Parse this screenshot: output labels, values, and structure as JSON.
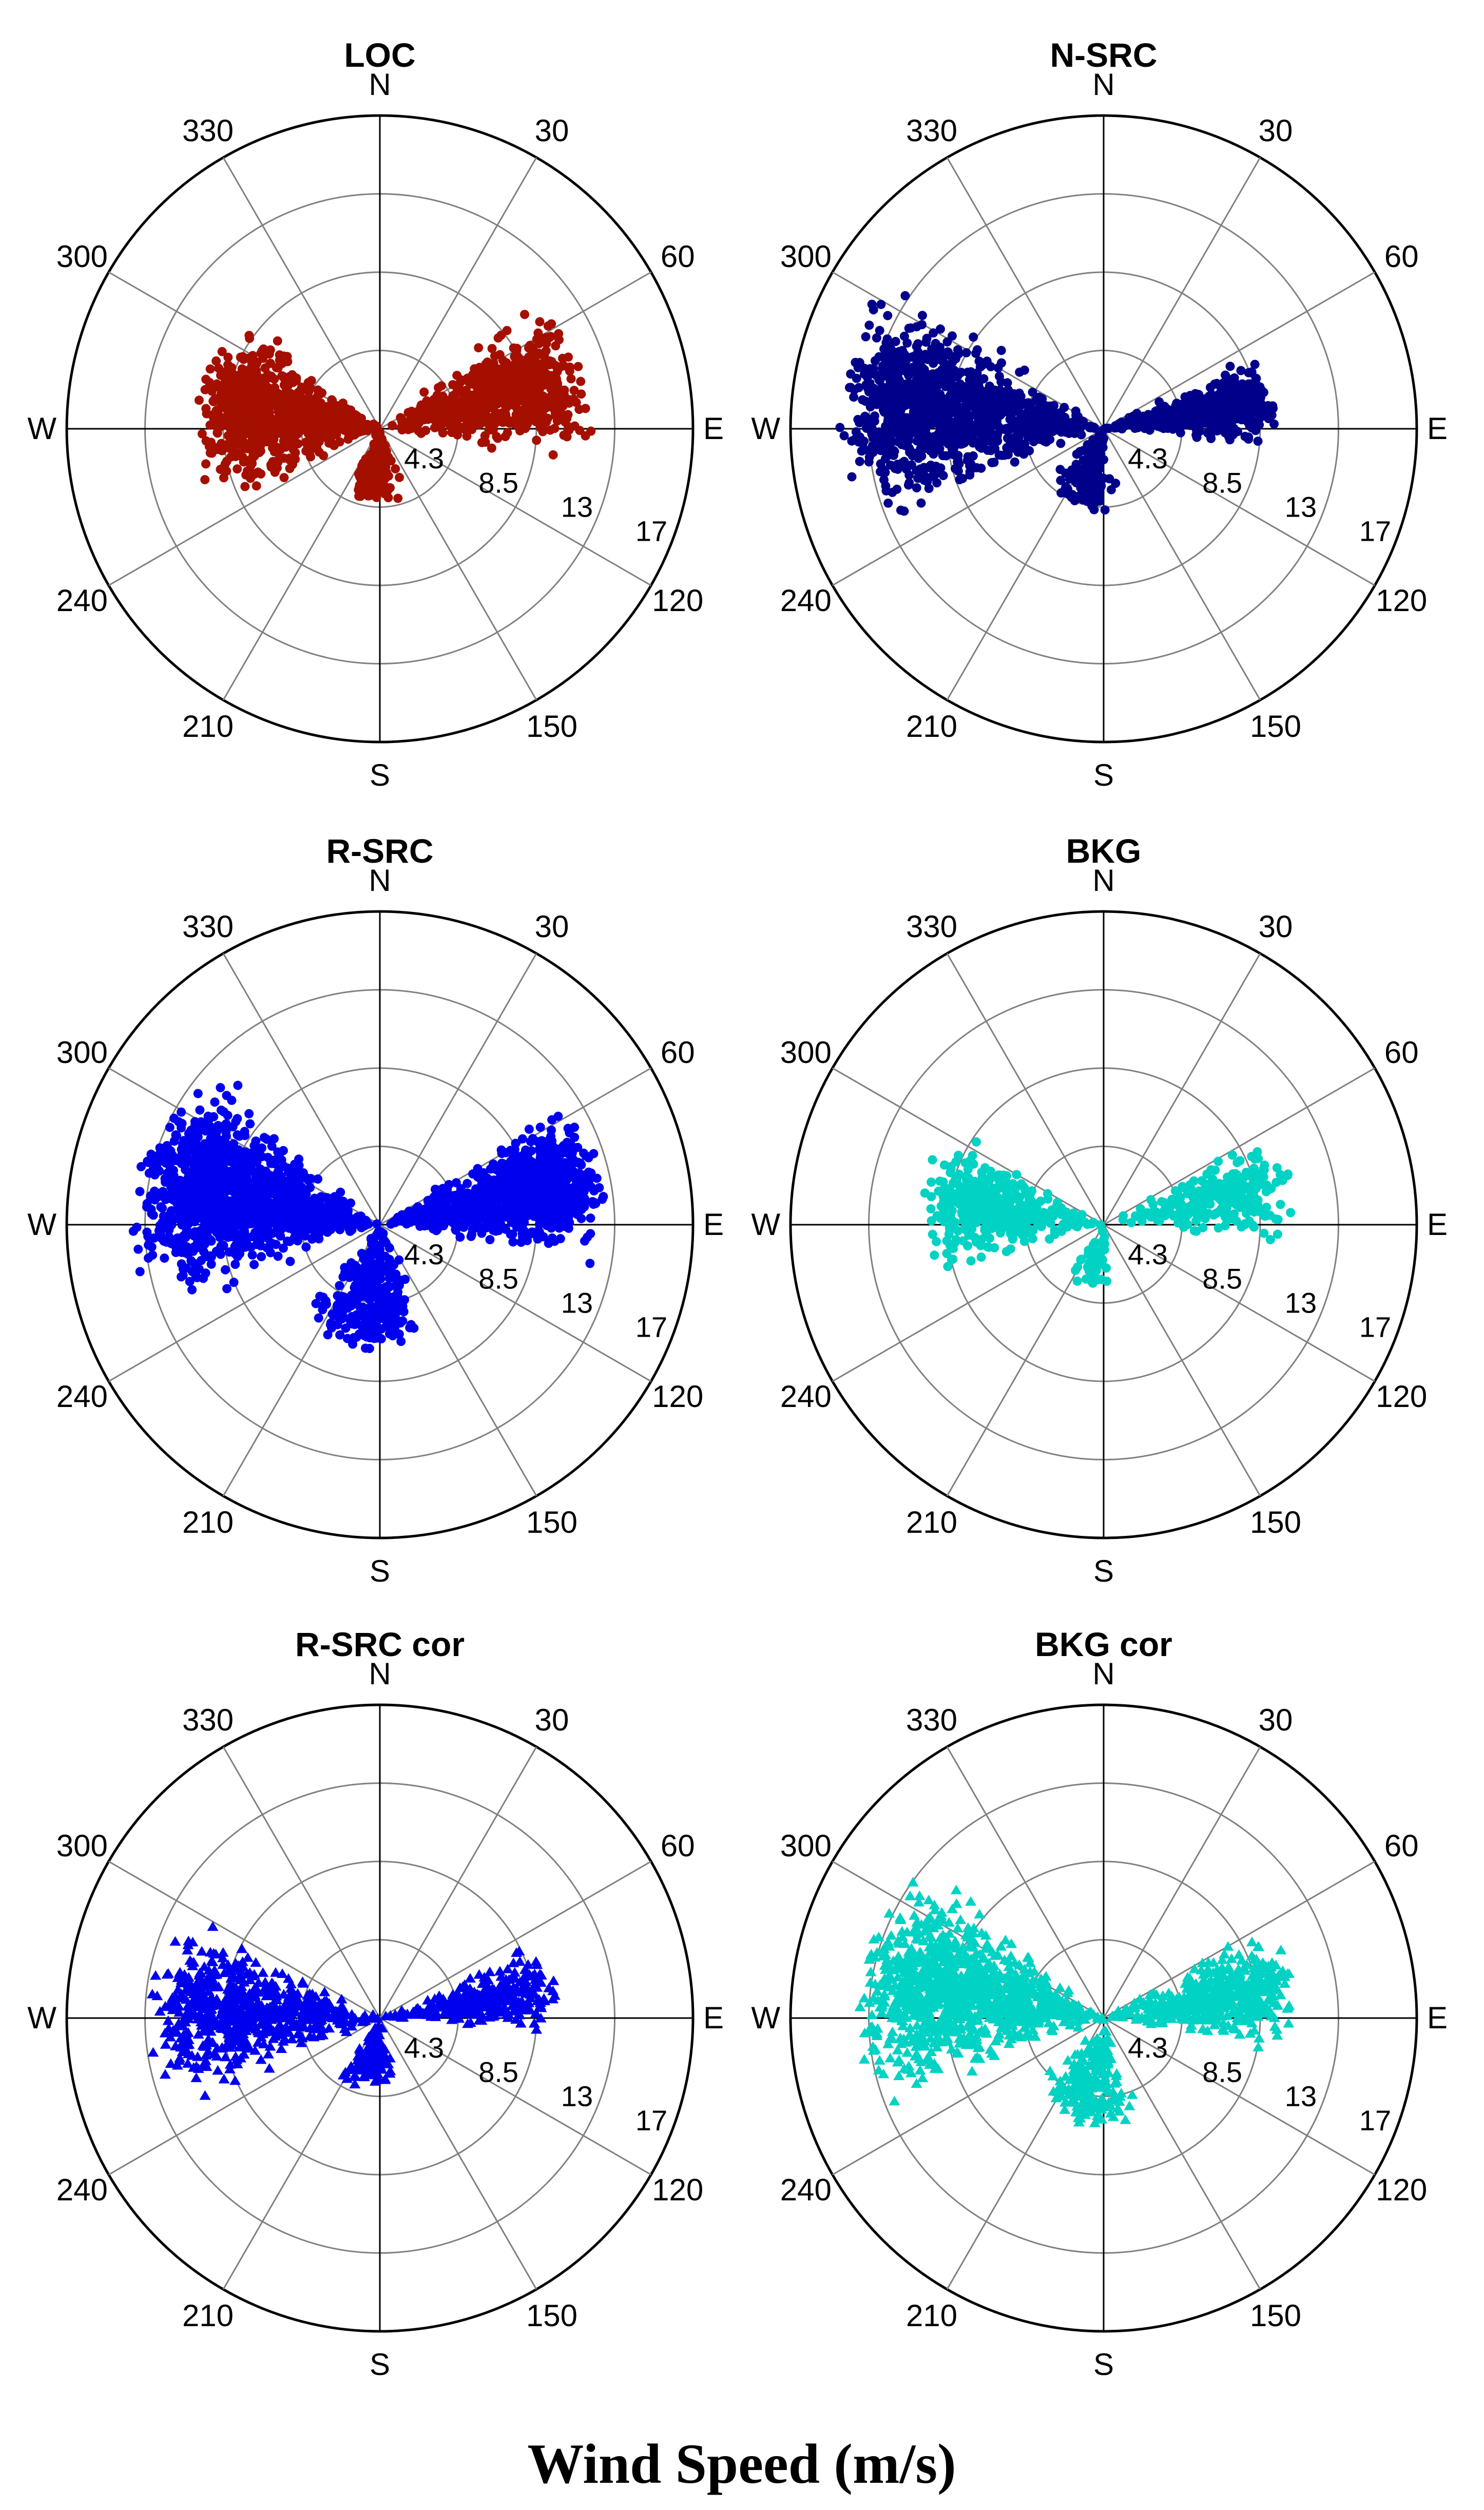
{
  "figure_title": "Wind Speed (m/s)",
  "chart_data": [
    {
      "type": "scatter",
      "coordinate_system": "polar",
      "title": "LOC",
      "marker": "circle",
      "color": "#a50f00",
      "r_ticks": [
        "4.3",
        "8.5",
        "13",
        "17"
      ],
      "r_max": 17,
      "angle_ticks": [
        "N",
        "30",
        "60",
        "E",
        "120",
        "150",
        "S",
        "210",
        "240",
        "W",
        "300",
        "330"
      ],
      "clusters": [
        {
          "direction_from_deg": [
            45,
            105
          ],
          "speed_range": [
            0,
            11.5
          ],
          "points": 700,
          "seed": 11
        },
        {
          "direction_from_deg": [
            235,
            320
          ],
          "speed_range": [
            0,
            10
          ],
          "points": 800,
          "seed": 12
        },
        {
          "direction_from_deg": [
            150,
            220
          ],
          "speed_range": [
            0,
            4
          ],
          "points": 160,
          "seed": 13
        }
      ]
    },
    {
      "type": "scatter",
      "coordinate_system": "polar",
      "title": "N-SRC",
      "marker": "circle",
      "color": "#00008b",
      "r_ticks": [
        "4.3",
        "8.5",
        "13",
        "17"
      ],
      "r_max": 17,
      "angle_ticks": [
        "N",
        "30",
        "60",
        "E",
        "120",
        "150",
        "S",
        "210",
        "240",
        "W",
        "300",
        "330"
      ],
      "clusters": [
        {
          "direction_from_deg": [
            60,
            100
          ],
          "speed_range": [
            0,
            9.5
          ],
          "points": 550,
          "seed": 21
        },
        {
          "direction_from_deg": [
            240,
            315
          ],
          "speed_range": [
            0,
            14.5
          ],
          "points": 1100,
          "seed": 22
        },
        {
          "direction_from_deg": [
            160,
            240
          ],
          "speed_range": [
            0,
            4.5
          ],
          "points": 160,
          "seed": 23
        }
      ]
    },
    {
      "type": "scatter",
      "coordinate_system": "polar",
      "title": "R-SRC",
      "marker": "circle",
      "color": "#0000ee",
      "r_ticks": [
        "4.3",
        "8.5",
        "13",
        "17"
      ],
      "r_max": 17,
      "angle_ticks": [
        "N",
        "30",
        "60",
        "E",
        "120",
        "150",
        "S",
        "210",
        "240",
        "W",
        "300",
        "330"
      ],
      "clusters": [
        {
          "direction_from_deg": [
            50,
            105
          ],
          "speed_range": [
            0,
            12.5
          ],
          "points": 900,
          "seed": 31
        },
        {
          "direction_from_deg": [
            240,
            320
          ],
          "speed_range": [
            0,
            13.5
          ],
          "points": 1300,
          "seed": 32
        },
        {
          "direction_from_deg": [
            140,
            235
          ],
          "speed_range": [
            0,
            7
          ],
          "points": 320,
          "seed": 33
        }
      ]
    },
    {
      "type": "scatter",
      "coordinate_system": "polar",
      "title": "BKG",
      "marker": "circle",
      "color": "#00d2c4",
      "r_ticks": [
        "4.3",
        "8.5",
        "13",
        "17"
      ],
      "r_max": 17,
      "angle_ticks": [
        "N",
        "30",
        "60",
        "E",
        "120",
        "150",
        "S",
        "210",
        "240",
        "W",
        "300",
        "330"
      ],
      "clusters": [
        {
          "direction_from_deg": [
            55,
            100
          ],
          "speed_range": [
            0,
            10.5
          ],
          "points": 260,
          "seed": 41
        },
        {
          "direction_from_deg": [
            245,
            310
          ],
          "speed_range": [
            0,
            10
          ],
          "points": 420,
          "seed": 42
        },
        {
          "direction_from_deg": [
            160,
            230
          ],
          "speed_range": [
            0,
            3.5
          ],
          "points": 60,
          "seed": 43
        }
      ]
    },
    {
      "type": "scatter",
      "coordinate_system": "polar",
      "title": "R-SRC cor",
      "marker": "triangle",
      "color": "#0000ee",
      "r_ticks": [
        "4.3",
        "8.5",
        "13",
        "17"
      ],
      "r_max": 17,
      "angle_ticks": [
        "N",
        "30",
        "60",
        "E",
        "120",
        "150",
        "S",
        "210",
        "240",
        "W",
        "300",
        "330"
      ],
      "clusters": [
        {
          "direction_from_deg": [
            60,
            100
          ],
          "speed_range": [
            0,
            10
          ],
          "points": 280,
          "seed": 51
        },
        {
          "direction_from_deg": [
            240,
            305
          ],
          "speed_range": [
            0,
            12.5
          ],
          "points": 650,
          "seed": 52
        },
        {
          "direction_from_deg": [
            155,
            230
          ],
          "speed_range": [
            0,
            4
          ],
          "points": 120,
          "seed": 53
        }
      ]
    },
    {
      "type": "scatter",
      "coordinate_system": "polar",
      "title": "BKG cor",
      "marker": "triangle",
      "color": "#00d2c4",
      "r_ticks": [
        "4.3",
        "8.5",
        "13",
        "17"
      ],
      "r_max": 17,
      "angle_ticks": [
        "N",
        "30",
        "60",
        "E",
        "120",
        "150",
        "S",
        "210",
        "240",
        "W",
        "300",
        "330"
      ],
      "clusters": [
        {
          "direction_from_deg": [
            55,
            105
          ],
          "speed_range": [
            0,
            10.5
          ],
          "points": 500,
          "seed": 61
        },
        {
          "direction_from_deg": [
            240,
            320
          ],
          "speed_range": [
            0,
            13.5
          ],
          "points": 1100,
          "seed": 62
        },
        {
          "direction_from_deg": [
            150,
            235
          ],
          "speed_range": [
            0,
            6
          ],
          "points": 220,
          "seed": 63
        }
      ]
    }
  ]
}
